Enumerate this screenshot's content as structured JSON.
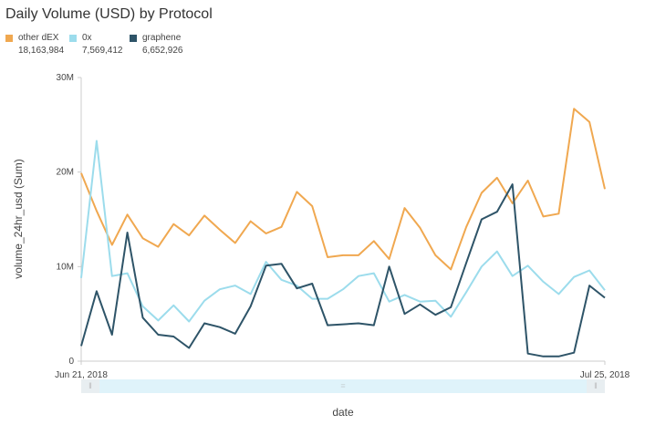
{
  "chart_data": {
    "type": "line",
    "title": "Daily Volume (USD) by Protocol",
    "xlabel": "date",
    "ylabel": "volume_24hr_usd (Sum)",
    "ylim": [
      0,
      30000000
    ],
    "y_ticks": [
      "0",
      "10M",
      "20M",
      "30M"
    ],
    "x_tick_labels": [
      "Jun 21, 2018",
      "Jul 25, 2018"
    ],
    "x_start": "2018-06-21",
    "x_end": "2018-07-25",
    "legend_position": "top-left",
    "grid": false,
    "series": [
      {
        "name": "other dEX",
        "total": "18,163,984",
        "color": "#f0a850",
        "values": [
          19900000,
          15900000,
          12300000,
          15500000,
          13000000,
          12100000,
          14500000,
          13300000,
          15400000,
          13900000,
          12500000,
          14800000,
          13500000,
          14200000,
          17900000,
          16400000,
          11000000,
          11200000,
          11200000,
          12700000,
          10800000,
          16200000,
          14100000,
          11200000,
          9700000,
          14200000,
          17800000,
          19400000,
          16700000,
          19100000,
          15300000,
          15600000,
          26700000,
          25300000,
          18200000
        ]
      },
      {
        "name": "0x",
        "total": "7,569,412",
        "color": "#9cdcec",
        "values": [
          8800000,
          23300000,
          9000000,
          9300000,
          5800000,
          4300000,
          5900000,
          4200000,
          6400000,
          7600000,
          8000000,
          7100000,
          10500000,
          8600000,
          8000000,
          6600000,
          6600000,
          7600000,
          9000000,
          9300000,
          6300000,
          7000000,
          6300000,
          6400000,
          4700000,
          7300000,
          10000000,
          11600000,
          9000000,
          10100000,
          8400000,
          7100000,
          8900000,
          9600000,
          7500000
        ]
      },
      {
        "name": "graphene",
        "total": "6,652,926",
        "color": "#2e5468",
        "values": [
          1600000,
          7400000,
          2800000,
          13600000,
          4600000,
          2800000,
          2600000,
          1400000,
          4000000,
          3600000,
          2900000,
          5800000,
          10100000,
          10300000,
          7700000,
          8200000,
          3800000,
          3900000,
          4000000,
          3800000,
          10000000,
          5000000,
          6000000,
          4900000,
          5700000,
          10400000,
          15000000,
          15800000,
          18700000,
          800000,
          500000,
          500000,
          900000,
          8000000,
          6700000
        ]
      }
    ]
  },
  "brush": {
    "grip_icon": "grip-lines-icon"
  }
}
